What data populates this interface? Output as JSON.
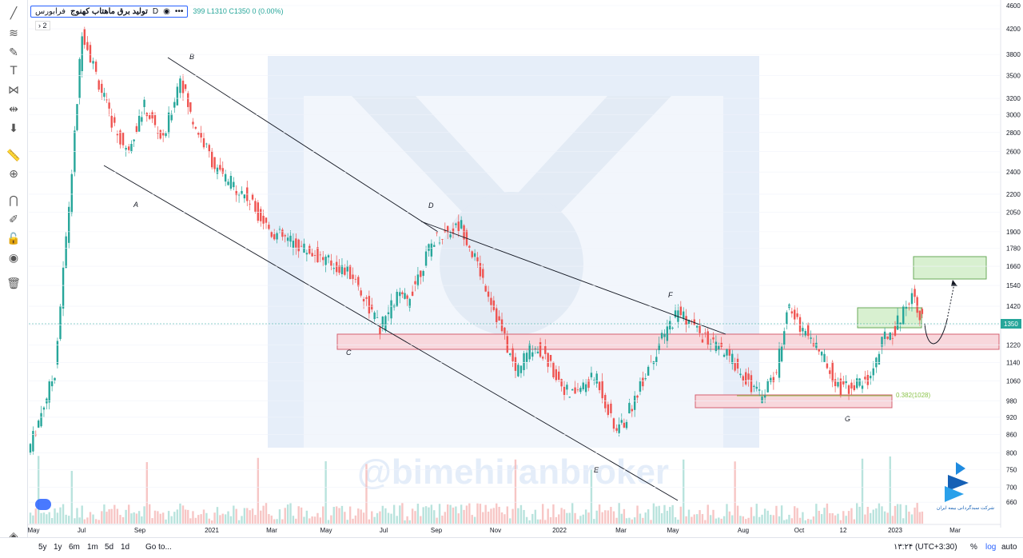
{
  "legend": {
    "title": "تولید برق ماهتاب کهنوج",
    "interval": "D",
    "exchange": "فرابورس",
    "ohlc": "399 L1310 C1350 0 (0.00%)",
    "indicator_count": "2"
  },
  "price_axis": {
    "ticks": [
      "4600",
      "4200",
      "3800",
      "3500",
      "3200",
      "3000",
      "2800",
      "2600",
      "2400",
      "2200",
      "2050",
      "1900",
      "1780",
      "1660",
      "1540",
      "1420",
      "1320",
      "1220",
      "1140",
      "1060",
      "980",
      "920",
      "860",
      "800",
      "750",
      "700",
      "660"
    ],
    "last_price": "1350"
  },
  "time_axis": [
    "May",
    "Jul",
    "Sep",
    "2021",
    "Mar",
    "May",
    "Jul",
    "Sep",
    "Nov",
    "2022",
    "Mar",
    "May",
    "Aug",
    "Oct",
    "12",
    "2023",
    "Mar"
  ],
  "watermark": "@bimehiranbroker",
  "logo_text": "شرکت سبدگردانی بیمه ایران",
  "annotations": {
    "points": [
      "A",
      "B",
      "C",
      "D",
      "E",
      "F",
      "G"
    ],
    "fib_label": "0.382(1028)"
  },
  "bottom_bar": {
    "timeframes": [
      "5y",
      "1y",
      "6m",
      "1m",
      "5d",
      "1d"
    ],
    "goto": "Go to...",
    "clock": "۱۳:۲۴ (UTC+3:30)",
    "percent": "%",
    "log": "log",
    "auto": "auto"
  },
  "colors": {
    "up": "#26a69a",
    "down": "#ef5350",
    "zone_red": "#f8d7dc",
    "zone_green": "#d8f0d0"
  },
  "icons": [
    "trend-line-icon",
    "fib-icon",
    "brush-icon",
    "text-icon",
    "pattern-icon",
    "measure-icon",
    "arrow-down-icon",
    "ruler-icon",
    "zoom-icon",
    "magnet-icon",
    "lock-draw-icon",
    "unlock-icon",
    "eye-icon",
    "trash-icon",
    "layers-icon"
  ],
  "chart_data": {
    "type": "candlestick",
    "scale": "log",
    "ylim": [
      640,
      4600
    ],
    "series": [
      {
        "x": "2020-05",
        "y": 800
      },
      {
        "x": "2020-06",
        "y": 1100
      },
      {
        "x": "2020-06-20",
        "y": 2400
      },
      {
        "x": "2020-07",
        "y": 4200
      },
      {
        "x": "2020-07-20",
        "y": 3400
      },
      {
        "x": "2020-08",
        "y": 3000
      },
      {
        "x": "2020-08-20",
        "y": 2600
      },
      {
        "x": "2020-09-10",
        "y": 3100
      },
      {
        "x": "2020-10",
        "y": 2700
      },
      {
        "x": "2020-10-20",
        "y": 3500
      },
      {
        "x": "2020-11",
        "y": 3000
      },
      {
        "x": "2020-12",
        "y": 2400
      },
      {
        "x": "2021-01",
        "y": 2200
      },
      {
        "x": "2021-02",
        "y": 1900
      },
      {
        "x": "2021-03",
        "y": 1800
      },
      {
        "x": "2021-04",
        "y": 1700
      },
      {
        "x": "2021-05",
        "y": 1600
      },
      {
        "x": "2021-06",
        "y": 1300
      },
      {
        "x": "2021-06-20",
        "y": 1480
      },
      {
        "x": "2021-07",
        "y": 1450
      },
      {
        "x": "2021-08",
        "y": 1850
      },
      {
        "x": "2021-09",
        "y": 1950
      },
      {
        "x": "2021-10",
        "y": 1500
      },
      {
        "x": "2021-11",
        "y": 1100
      },
      {
        "x": "2021-11-20",
        "y": 1220
      },
      {
        "x": "2021-12",
        "y": 1180
      },
      {
        "x": "2022-01",
        "y": 1000
      },
      {
        "x": "2022-02",
        "y": 1080
      },
      {
        "x": "2022-02-20",
        "y": 880
      },
      {
        "x": "2022-03",
        "y": 900
      },
      {
        "x": "2022-04",
        "y": 1150
      },
      {
        "x": "2022-05",
        "y": 1400
      },
      {
        "x": "2022-06",
        "y": 1250
      },
      {
        "x": "2022-07",
        "y": 1150
      },
      {
        "x": "2022-08",
        "y": 1000
      },
      {
        "x": "2022-08-20",
        "y": 1100
      },
      {
        "x": "2022-09",
        "y": 1410
      },
      {
        "x": "2022-10",
        "y": 1240
      },
      {
        "x": "2022-11",
        "y": 1030
      },
      {
        "x": "2022-12",
        "y": 1060
      },
      {
        "x": "2022-12-20",
        "y": 1260
      },
      {
        "x": "2023-01",
        "y": 1300
      },
      {
        "x": "2023-01-20",
        "y": 1500
      },
      {
        "x": "2023-02",
        "y": 1350
      }
    ]
  }
}
